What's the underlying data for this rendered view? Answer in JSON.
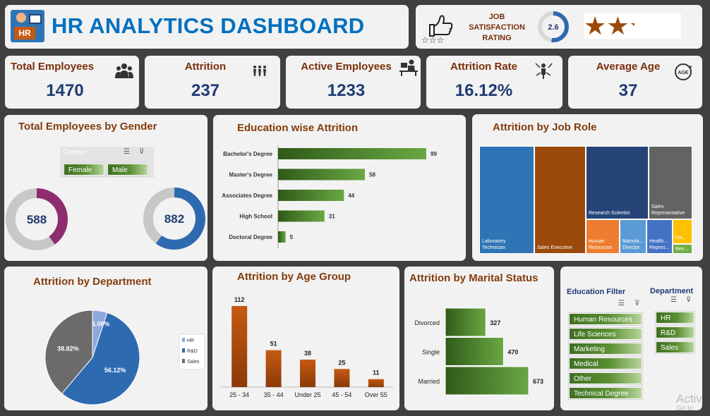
{
  "header": {
    "logo_text": "HR",
    "title": "HR ANALYTICS DASHBOARD"
  },
  "job_satisfaction": {
    "label_lines": [
      "JOB",
      "SATISFACTION",
      "RATING"
    ],
    "rating": 2.6,
    "rating_text": "2.6",
    "max": 5,
    "stars": 2.6
  },
  "kpis": [
    {
      "label": "Total Employees",
      "value": "1470",
      "icon": "people-group-icon"
    },
    {
      "label": "Attrition",
      "value": "237",
      "icon": "people-leaving-icon"
    },
    {
      "label": "Active Employees",
      "value": "1233",
      "icon": "desk-worker-icon"
    },
    {
      "label": "Attrition Rate",
      "value": "16.12%",
      "icon": "rate-person-icon"
    },
    {
      "label": "Average Age",
      "value": "37",
      "icon": "age-badge-icon"
    }
  ],
  "gender_panel": {
    "title": "Total Employees by Gender",
    "slicer_label": "Gender",
    "options": [
      "Female",
      "Male"
    ],
    "female": {
      "value": 588,
      "text": "588",
      "color": "#8e2d6e"
    },
    "male": {
      "value": 882,
      "text": "882",
      "color": "#2e6ab0"
    },
    "total": 1470
  },
  "education_attrition": {
    "title": "Education wise Attrition",
    "chart_data": {
      "type": "bar",
      "orientation": "horizontal",
      "categories": [
        "Bachelor's Degree",
        "Master's Degree",
        "Associates Degree",
        "High School",
        "Doctoral Degree"
      ],
      "values": [
        99,
        58,
        44,
        31,
        5
      ],
      "value_labels": [
        "99",
        "58",
        "44",
        "31",
        "5"
      ],
      "color": "#4e8a2e"
    }
  },
  "job_role": {
    "title": "Attrition by Job Role",
    "cells": [
      {
        "label_lines": [
          "Laboratory",
          "Technician"
        ],
        "color": "#2e75b6"
      },
      {
        "label_lines": [
          "Sales Executive"
        ],
        "color": "#9c4a0c"
      },
      {
        "label_lines": [
          "Research Scientist"
        ],
        "color": "#264478"
      },
      {
        "label_lines": [
          "Sales",
          "Representative"
        ],
        "color": "#636363"
      },
      {
        "label_lines": [
          "Human",
          "Resources"
        ],
        "color": "#ed7d31"
      },
      {
        "label_lines": [
          "Manufa...",
          "Director"
        ],
        "color": "#5b9bd5"
      },
      {
        "label_lines": [
          "Health...",
          "Repres..."
        ],
        "color": "#4472c4"
      },
      {
        "label_lines": [
          "Ma..."
        ],
        "color": "#ffc000"
      },
      {
        "label_lines": [
          "Res..."
        ],
        "color": "#70ad47"
      }
    ]
  },
  "department": {
    "title": "Attrition by Department",
    "chart_data": {
      "type": "pie",
      "categories": [
        "HR",
        "R&D",
        "Sales"
      ],
      "values": [
        5.06,
        56.12,
        38.82
      ],
      "value_labels": [
        "5.06%",
        "56.12%",
        "38.82%"
      ],
      "colors": [
        "#8fa8dc",
        "#2e6ab0",
        "#6b6b6b"
      ],
      "legend": "right"
    }
  },
  "age_group": {
    "title": "Attrition by Age Group",
    "chart_data": {
      "type": "bar",
      "categories": [
        "25 - 34",
        "35 - 44",
        "Under 25",
        "45 - 54",
        "Over 55"
      ],
      "values": [
        112,
        51,
        38,
        25,
        11
      ],
      "value_labels": [
        "112",
        "51",
        "38",
        "25",
        "11"
      ],
      "color": "#b5530f"
    }
  },
  "marital": {
    "title": "Attrition by Marital Status",
    "chart_data": {
      "type": "bar",
      "orientation": "horizontal",
      "categories": [
        "Divorced",
        "Single",
        "Married"
      ],
      "values": [
        327,
        470,
        673
      ],
      "value_labels": [
        "327",
        "470",
        "673"
      ],
      "color": "#4e8a2e"
    }
  },
  "filters": {
    "education_title": "Education Filter",
    "education_options": [
      "Human Resources",
      "Life Sciences",
      "Marketing",
      "Medical",
      "Other",
      "Technical Degree"
    ],
    "department_title": "Department",
    "department_options": [
      "HR",
      "R&D",
      "Sales"
    ]
  },
  "watermark": {
    "line1": "Activ",
    "line2": "Go to"
  }
}
